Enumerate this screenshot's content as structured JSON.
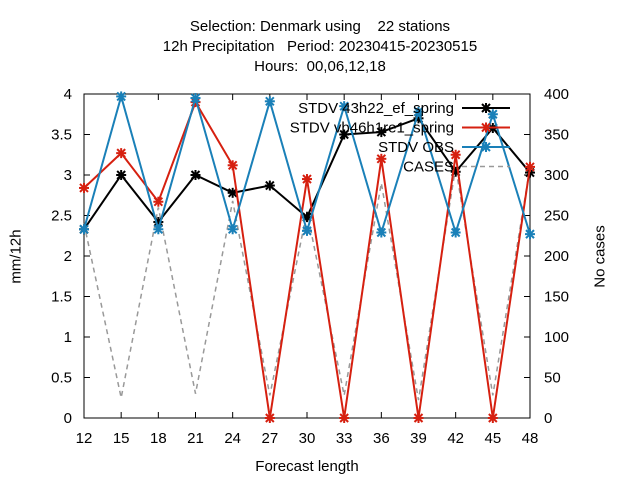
{
  "chart_data": {
    "type": "line",
    "title_lines": [
      "Selection: Denmark using    22 stations",
      "12h Precipitation   Period: 20230415-20230515",
      "Hours:  00,06,12,18"
    ],
    "xlabel": "Forecast length",
    "ylabel": "mm/12h",
    "y2label": "No cases",
    "x": [
      12,
      15,
      18,
      21,
      24,
      27,
      30,
      33,
      36,
      39,
      42,
      45,
      48
    ],
    "xticks": [
      "12",
      "15",
      "18",
      "21",
      "24",
      "27",
      "30",
      "33",
      "36",
      "39",
      "42",
      "45",
      "48"
    ],
    "ylim": [
      0,
      4
    ],
    "yticks": [
      "0",
      "0.5",
      "1",
      "1.5",
      "2",
      "2.5",
      "3",
      "3.5",
      "4"
    ],
    "y2lim": [
      0,
      400
    ],
    "y2ticks": [
      "0",
      "50",
      "100",
      "150",
      "200",
      "250",
      "300",
      "350",
      "400"
    ],
    "legend_position": "top-right",
    "series": [
      {
        "name": "STDV 43h22_ef_spring",
        "axis": "left",
        "color": "#000000",
        "style": "solid",
        "values": [
          2.33,
          3.0,
          2.42,
          3.0,
          2.78,
          2.87,
          2.48,
          3.5,
          3.53,
          3.7,
          3.04,
          3.58,
          3.03
        ]
      },
      {
        "name": "STDV vb46h1re1_spring",
        "axis": "left",
        "color": "#d62010",
        "style": "solid",
        "values": [
          2.84,
          3.27,
          2.67,
          3.9,
          3.12,
          0.0,
          2.95,
          0.0,
          3.2,
          0.0,
          3.25,
          0.0,
          3.1
        ]
      },
      {
        "name": "STDV OBS",
        "axis": "left",
        "color": "#1a80b8",
        "style": "solid",
        "values": [
          2.33,
          3.97,
          2.33,
          3.95,
          2.33,
          3.91,
          2.31,
          3.85,
          2.29,
          3.78,
          2.29,
          3.75,
          2.27
        ]
      },
      {
        "name": "CASES",
        "axis": "right",
        "color": "#999999",
        "style": "dashed",
        "values": [
          240,
          25,
          260,
          30,
          268,
          28,
          255,
          28,
          290,
          22,
          310,
          28,
          310
        ]
      }
    ]
  }
}
